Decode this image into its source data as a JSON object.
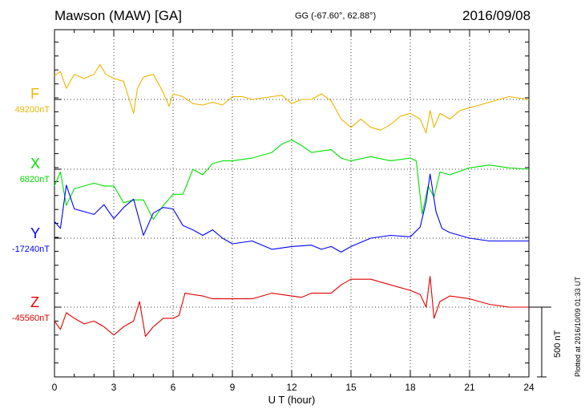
{
  "header": {
    "station": "Mawson (MAW)  [GA]",
    "coords": "GG (-67.60°,  62.88°)",
    "date": "2016/09/08"
  },
  "footer": {
    "plotted": "Plotted at 2016/10/09 01:33 UT"
  },
  "scale_bar": {
    "label": "500 nT",
    "value": 500
  },
  "chart_data": {
    "type": "line",
    "xlabel": "U T (hour)",
    "xlim": [
      0,
      24
    ],
    "xticks": [
      0,
      3,
      6,
      9,
      12,
      15,
      18,
      21,
      24
    ],
    "grid": true,
    "series": [
      {
        "name": "F",
        "baseline_label": "49200nT",
        "baseline": 49200,
        "color": "#f0b400",
        "x": [
          0,
          0.3,
          0.6,
          1,
          1.5,
          2,
          2.3,
          2.6,
          3,
          3.5,
          4,
          4.2,
          4.5,
          5,
          5.5,
          5.8,
          6,
          6.5,
          7,
          7.5,
          8,
          8.5,
          9,
          9.5,
          10,
          11,
          11.5,
          12,
          12.5,
          13,
          13.5,
          14,
          14.5,
          15,
          15.5,
          16,
          16.5,
          17,
          17.5,
          18,
          18.5,
          18.8,
          19,
          19.2,
          19.5,
          20,
          20.5,
          21,
          21.5,
          22,
          23,
          24
        ],
        "y": [
          49370,
          49400,
          49280,
          49380,
          49350,
          49380,
          49450,
          49380,
          49350,
          49330,
          49100,
          49280,
          49360,
          49380,
          49250,
          49150,
          49240,
          49220,
          49170,
          49160,
          49180,
          49160,
          49220,
          49220,
          49200,
          49220,
          49230,
          49170,
          49200,
          49200,
          49240,
          49190,
          49060,
          49000,
          49060,
          49000,
          48980,
          49020,
          49080,
          49100,
          49060,
          48960,
          49120,
          49000,
          49100,
          49060,
          49120,
          49140,
          49160,
          49180,
          49220,
          49200
        ]
      },
      {
        "name": "X",
        "baseline_label": "6820nT",
        "baseline": 6820,
        "color": "#00e000",
        "x": [
          0,
          0.3,
          0.6,
          1,
          1.5,
          2,
          2.5,
          3,
          3.5,
          4,
          4.5,
          5,
          5.5,
          6,
          6.5,
          7,
          7.5,
          8,
          8.5,
          9,
          10,
          11,
          11.5,
          12,
          12.5,
          13,
          14,
          14.5,
          15,
          16,
          17,
          18,
          18.3,
          18.6,
          18.9,
          19.2,
          19.5,
          20,
          21,
          22,
          23,
          24
        ],
        "y": [
          6700,
          6800,
          6560,
          6680,
          6700,
          6720,
          6700,
          6700,
          6580,
          6600,
          6600,
          6460,
          6560,
          6640,
          6640,
          6820,
          6780,
          6860,
          6880,
          6880,
          6900,
          6940,
          7000,
          7030,
          6990,
          6940,
          6960,
          6900,
          6880,
          6910,
          6880,
          6900,
          6880,
          6500,
          6700,
          6620,
          6800,
          6780,
          6830,
          6850,
          6830,
          6820
        ]
      },
      {
        "name": "Y",
        "baseline_label": "-17240nT",
        "baseline": -17240,
        "color": "#0000ff",
        "x": [
          0,
          0.3,
          0.6,
          1,
          1.5,
          2,
          2.5,
          3,
          3.5,
          4,
          4.5,
          5,
          5.5,
          6,
          6.5,
          7,
          7.5,
          8,
          8.5,
          9,
          10,
          11,
          12,
          13,
          13.5,
          14,
          14.5,
          15,
          16,
          17,
          18,
          18.5,
          18.8,
          19,
          19.3,
          19.6,
          20,
          21,
          22,
          23,
          24
        ],
        "y": [
          -17120,
          -17170,
          -16860,
          -17030,
          -17050,
          -17070,
          -17000,
          -17100,
          -17020,
          -16960,
          -17220,
          -17060,
          -17020,
          -17030,
          -17150,
          -17180,
          -17220,
          -17180,
          -17240,
          -17280,
          -17260,
          -17320,
          -17300,
          -17290,
          -17320,
          -17300,
          -17340,
          -17300,
          -17240,
          -17220,
          -17230,
          -17160,
          -16980,
          -16780,
          -17050,
          -17170,
          -17200,
          -17240,
          -17260,
          -17260,
          -17260
        ]
      },
      {
        "name": "Z",
        "baseline_label": "-45560nT",
        "baseline": -45560,
        "color": "#e00000",
        "x": [
          0,
          0.3,
          0.6,
          1,
          1.5,
          2,
          2.5,
          3,
          3.5,
          4,
          4.3,
          4.6,
          5,
          5.5,
          6,
          6.3,
          6.6,
          7,
          7.5,
          8,
          9,
          10,
          11,
          12,
          12.5,
          13,
          14,
          14.5,
          15,
          16,
          17,
          18,
          18.5,
          18.8,
          19,
          19.2,
          19.5,
          20,
          21,
          22,
          23,
          24
        ],
        "y": [
          -45660,
          -45720,
          -45600,
          -45640,
          -45680,
          -45660,
          -45700,
          -45760,
          -45700,
          -45660,
          -45520,
          -45770,
          -45700,
          -45640,
          -45640,
          -45620,
          -45460,
          -45470,
          -45480,
          -45500,
          -45500,
          -45500,
          -45460,
          -45480,
          -45490,
          -45460,
          -45460,
          -45400,
          -45360,
          -45360,
          -45400,
          -45440,
          -45470,
          -45560,
          -45340,
          -45640,
          -45520,
          -45480,
          -45500,
          -45540,
          -45560,
          -45560
        ]
      }
    ]
  }
}
